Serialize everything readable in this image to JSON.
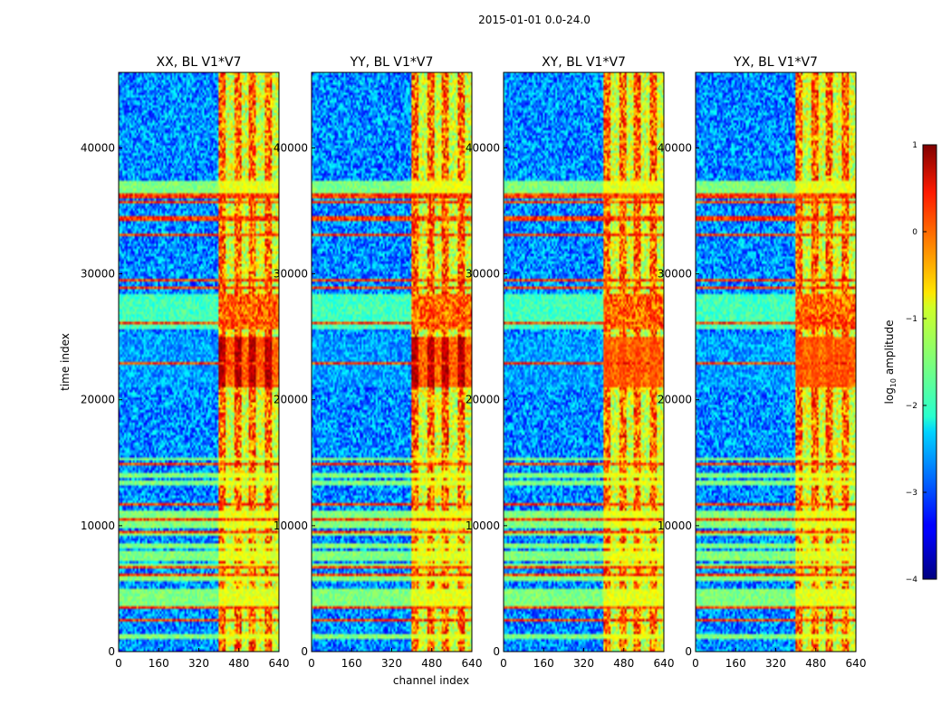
{
  "figure": {
    "suptitle": "2015-01-01 0.0-24.0",
    "xlabel": "channel index",
    "ylabel": "time index"
  },
  "colorbar": {
    "label": "log",
    "label_sub": "10",
    "label_rest": " amplitude",
    "ticks": [
      1,
      0,
      -1,
      -2,
      -3,
      -4
    ],
    "tick_labels": [
      "1",
      "0",
      "−1",
      "−2",
      "−3",
      "−4"
    ],
    "vmin": -4,
    "vmax": 1,
    "cmap": "jet"
  },
  "chart_data": {
    "type": "heatmap",
    "colormap": "jet",
    "value_label": "log10 amplitude",
    "xlim": [
      0,
      640
    ],
    "ylim": [
      0,
      46000
    ],
    "x_ticks": [
      0,
      160,
      320,
      480,
      640
    ],
    "x_tick_labels": [
      "0",
      "160",
      "320",
      "480",
      "640"
    ],
    "y_ticks": [
      0,
      10000,
      20000,
      30000,
      40000
    ],
    "y_tick_labels": [
      "0",
      "10000",
      "20000",
      "30000",
      "40000"
    ],
    "panels": [
      {
        "title": "XX, BL V1*V7",
        "peak": 1.0
      },
      {
        "title": "YY, BL V1*V7",
        "peak": 1.0
      },
      {
        "title": "XY, BL V1*V7",
        "peak": 0.85
      },
      {
        "title": "YX, BL V1*V7",
        "peak": 0.85
      }
    ],
    "rfi_channel_band": [
      400,
      640
    ],
    "bright_time_band": [
      21000,
      25000
    ],
    "flagged_time_ranges": [
      [
        36000,
        37500
      ],
      [
        25500,
        28500
      ],
      [
        0,
        15500
      ]
    ]
  }
}
